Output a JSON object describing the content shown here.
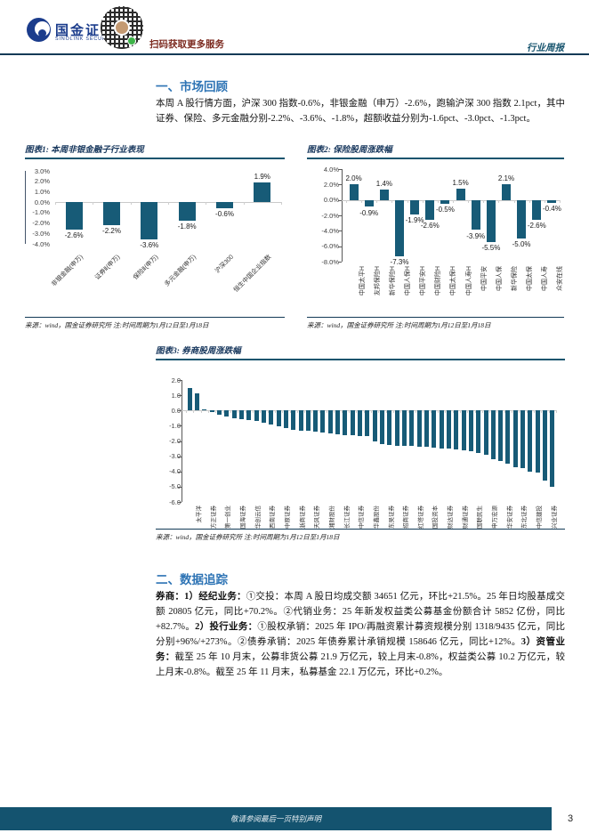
{
  "header": {
    "logo_title": "国金证券",
    "logo_subtitle": "SINOLINK SECURITIES",
    "qr_caption": "扫码获取更多服务",
    "report_type": "行业周报"
  },
  "sections": {
    "s1_title": "一、市场回顾",
    "s1_paragraph": "本周 A 股行情方面，沪深 300 指数-0.6%，非银金融（申万）-2.6%，跑输沪深 300 指数 2.1pct，其中证券、保险、多元金融分别-2.2%、-3.6%、-1.8%，超额收益分别为-1.6pct、-3.0pct、-1.3pct。",
    "s2_title": "二、数据追踪",
    "s2_segments": [
      {
        "text": "券商：1）经纪业务：",
        "bold": true
      },
      {
        "text": "①交投：本周 A 股日均成交额 34651 亿元，环比+21.5%。25 年日均股基成交额 20805 亿元，同比+70.2%。②代销业务：25 年新发权益类公募基金份额合计 5852 亿份，同比+82.7%。",
        "bold": false
      },
      {
        "text": "2）投行业务：",
        "bold": true
      },
      {
        "text": "①股权承销：2025 年 IPO/再融资累计募资规模分别 1318/9435 亿元，同比分别+96%/+273%。②债券承销：2025 年债券累计承销规模 158646 亿元，同比+12%。",
        "bold": false
      },
      {
        "text": "3）资管业务：",
        "bold": true
      },
      {
        "text": "截至 25 年 10 月末，公募非货公募 21.9 万亿元，较上月末-0.8%，权益类公募 10.2 万亿元，较上月末-0.8%。截至 25 年 11 月末，私募基金 22.1 万亿元，环比+0.2%。",
        "bold": false
      }
    ]
  },
  "chart_data": [
    {
      "type": "bar",
      "title": "图表1: 本周非银金融子行业表现",
      "categories": [
        "非银金融(申万)",
        "证券Ⅱ(申万)",
        "保险Ⅱ(申万)",
        "多元金融(申万)",
        "沪深300",
        "恒生中国企业指数"
      ],
      "values": [
        -2.6,
        -2.2,
        -3.6,
        -1.8,
        -0.6,
        1.9
      ],
      "unit": "%",
      "ylim": [
        -4.0,
        3.0
      ],
      "ytick_step": 1.0,
      "tick_suffix": "%",
      "value_labels": true,
      "bar_color": "#175B77",
      "source": "来源：wind，国金证券研究所  注:时间周期为1月12日至1月18日"
    },
    {
      "type": "bar",
      "title": "图表2: 保险股周涨跌幅",
      "categories": [
        "中国太平H",
        "友邦保险H",
        "新华保险H",
        "中国人保H",
        "中国平安H",
        "中国财险H",
        "中国太保H",
        "中国人寿H",
        "中国平安",
        "中国人保",
        "新华保险",
        "中国太保",
        "中国人寿",
        "众安在线"
      ],
      "values": [
        2.0,
        -0.9,
        1.4,
        -7.3,
        -1.9,
        -2.6,
        -0.5,
        1.5,
        -3.9,
        -5.5,
        2.1,
        -5.0,
        -2.6,
        -0.4
      ],
      "unit": "%",
      "ylim": [
        -8.0,
        4.0
      ],
      "ytick_step": 2.0,
      "tick_suffix": "%",
      "value_labels": true,
      "bar_color": "#175B77",
      "source": "来源：wind，国金证券研究所  注:时间周期为1月12日至1月18日"
    },
    {
      "type": "bar",
      "title": "图表3: 券商股周涨跌幅",
      "categories": [
        "太平洋",
        "方正证券",
        "第一创业",
        "国海证券",
        "华创云信",
        "西南证券",
        "中原证券",
        "浙商证券",
        "天风证券",
        "湘财股份",
        "长江证券",
        "中信证券",
        "华鑫股份",
        "东吴证券",
        "招商证券",
        "红塔证券",
        "国投资本",
        "财达证券",
        "财通证券",
        "国联民生",
        "申万宏源",
        "华安证券",
        "东北证券",
        "中信建投",
        "兴业证券"
      ],
      "label_every": 2,
      "values": [
        1.5,
        1.1,
        0.1,
        -0.1,
        -0.3,
        -0.4,
        -0.5,
        -0.55,
        -0.6,
        -0.7,
        -0.8,
        -0.9,
        -1.05,
        -1.15,
        -1.25,
        -1.3,
        -1.35,
        -1.4,
        -1.45,
        -1.5,
        -1.55,
        -1.6,
        -1.6,
        -1.65,
        -1.7,
        -2.0,
        -2.2,
        -2.25,
        -2.3,
        -2.3,
        -2.35,
        -2.4,
        -2.4,
        -2.45,
        -2.5,
        -2.5,
        -2.55,
        -2.6,
        -2.7,
        -2.8,
        -2.9,
        -3.2,
        -3.3,
        -3.5,
        -3.7,
        -3.8,
        -4.0,
        -4.1,
        -4.6,
        -5.0
      ],
      "unit": "%",
      "ylim": [
        -6.0,
        2.0
      ],
      "ytick_step": 1.0,
      "tick_suffix": "",
      "value_labels": false,
      "bar_color": "#175B77",
      "source": "来源：wind，国金证券研究所  注:时间周期为1月12日至1月18日"
    }
  ],
  "footer": {
    "disclaimer": "敬请参阅最后一页特别声明",
    "page_number": "3"
  },
  "colors": {
    "bar": "#175B77",
    "heading_blue": "#2E74B5",
    "figure_title_navy": "#16365C",
    "rule_teal": "#17546E",
    "footer_bg": "#14536F",
    "logo_blue": "#1B3C8C",
    "qr_caption_red": "#7C2B20"
  }
}
